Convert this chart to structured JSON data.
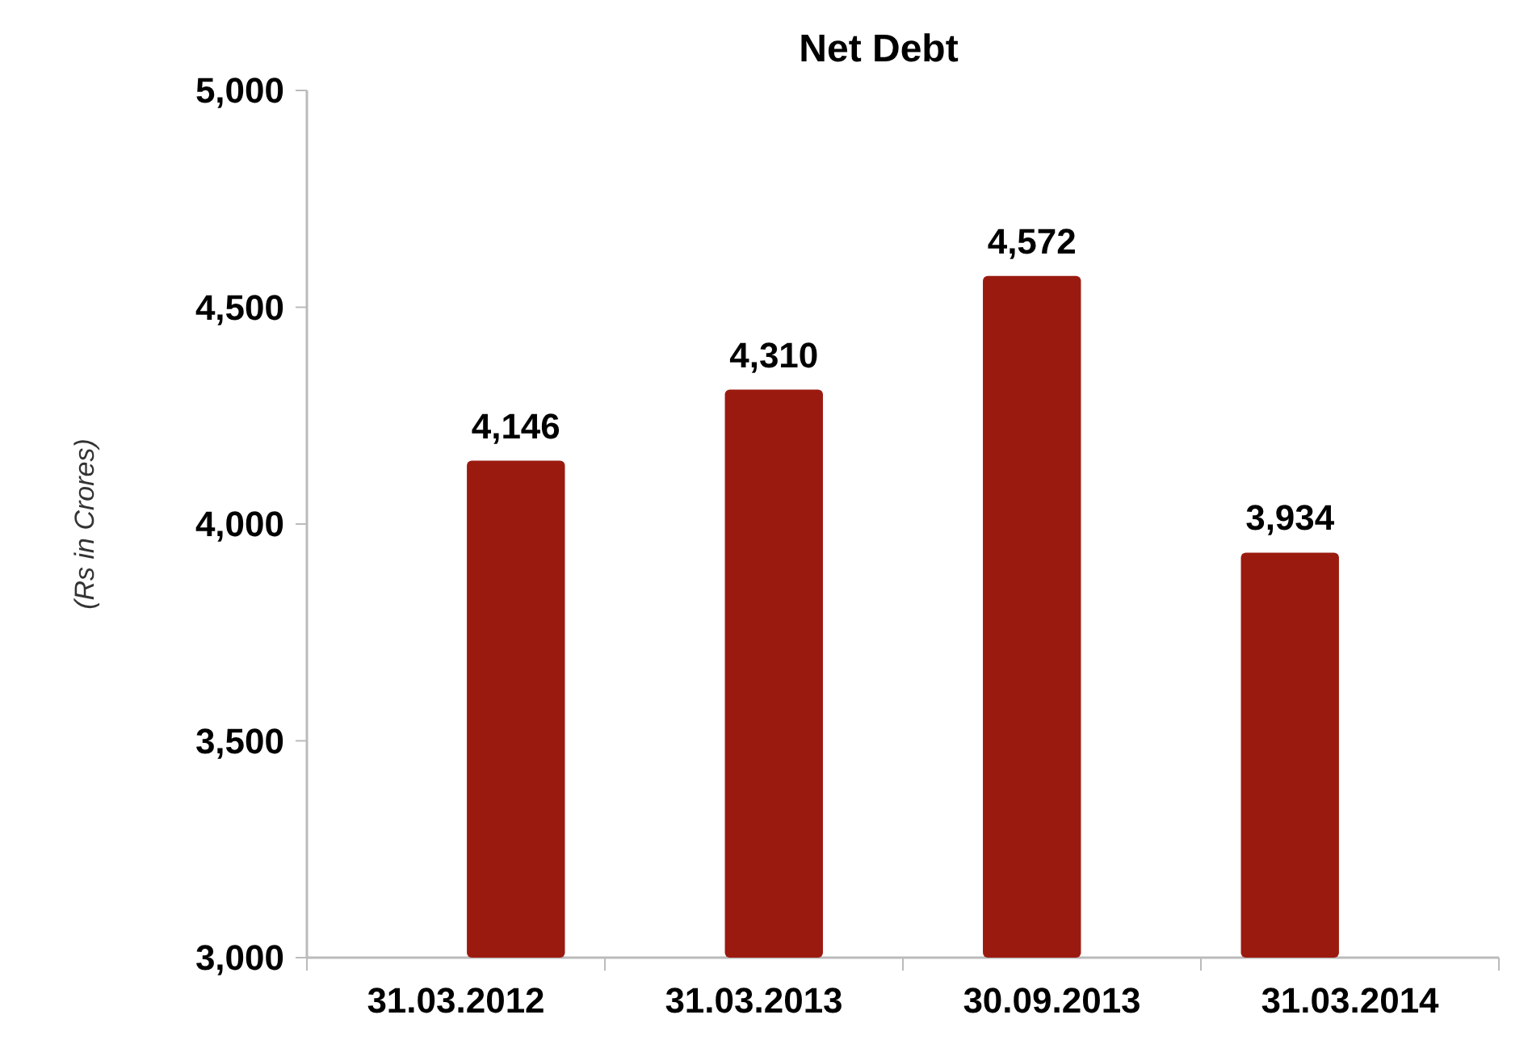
{
  "chart_data": {
    "type": "bar",
    "title": "Net Debt",
    "ylabel": "(Rs in Crores)",
    "categories": [
      "31.03.2012",
      "31.03.2013",
      "30.09.2013",
      "31.03.2014"
    ],
    "values": [
      4146,
      4310,
      4572,
      3934
    ],
    "color": "#9b1a10",
    "ylim": [
      3000,
      5000
    ],
    "yticks": [
      {
        "value": 3000,
        "label": "3,000"
      },
      {
        "value": 3500,
        "label": "3,500"
      },
      {
        "value": 4000,
        "label": "4,000"
      },
      {
        "value": 4500,
        "label": "4,500"
      },
      {
        "value": 5000,
        "label": "5,000"
      }
    ],
    "data_labels": true,
    "value_labels": [
      "4,146",
      "4,310",
      "4,572",
      "3,934"
    ]
  }
}
